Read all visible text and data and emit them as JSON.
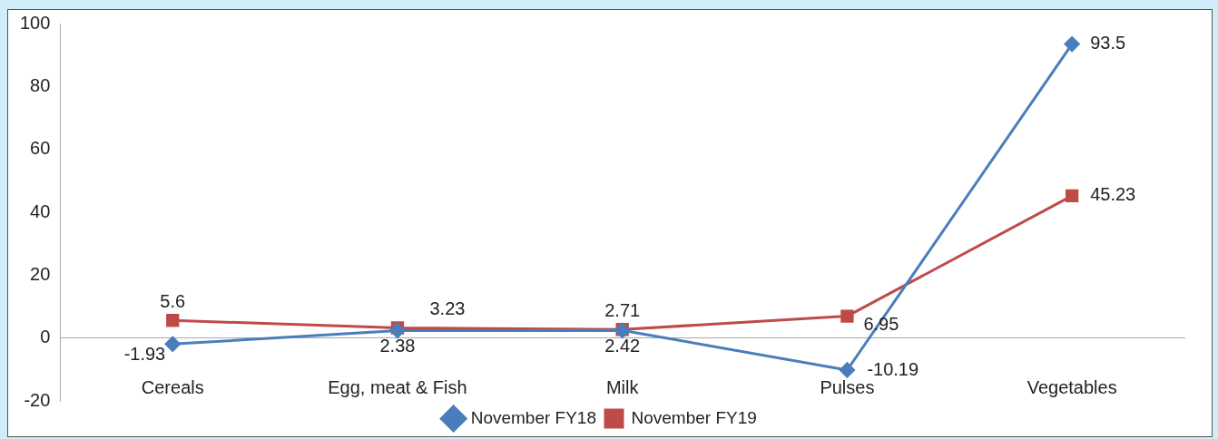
{
  "chart_data": {
    "type": "line",
    "categories": [
      "Cereals",
      "Egg, meat & Fish",
      "Milk",
      "Pulses",
      "Vegetables"
    ],
    "series": [
      {
        "name": "November FY18",
        "color": "#4a7ebb",
        "marker": "diamond",
        "values": [
          -1.93,
          2.38,
          2.42,
          -10.19,
          93.5
        ]
      },
      {
        "name": "November FY19",
        "color": "#be4b48",
        "marker": "square",
        "values": [
          5.6,
          3.23,
          2.71,
          6.95,
          45.23
        ]
      }
    ],
    "ylim": [
      -20,
      100
    ],
    "yticks": [
      -20,
      0,
      20,
      40,
      60,
      80,
      100
    ],
    "grid": false,
    "legend": "bottom",
    "data_labels": true,
    "line_style": "solid"
  }
}
